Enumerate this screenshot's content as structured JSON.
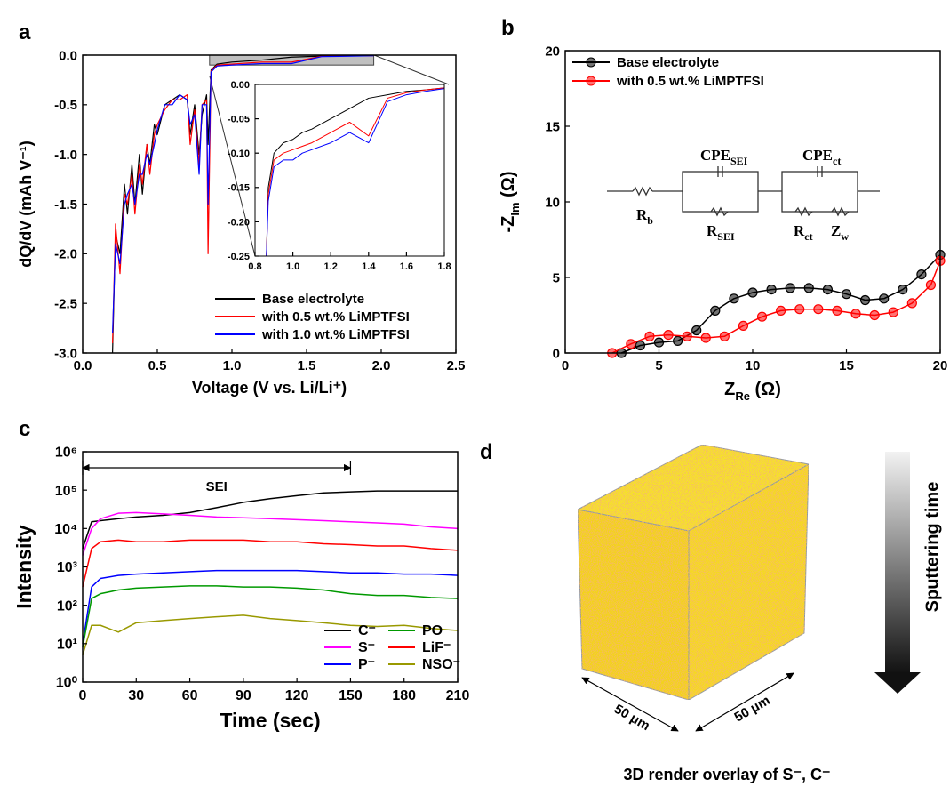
{
  "chart_data": [
    {
      "type": "line",
      "panel": "a",
      "x_label": "Voltage (V vs. Li/Li⁺)",
      "y_label": "dQ/dV (mAh V⁻¹)",
      "xlim": [
        0,
        2.5
      ],
      "ylim": [
        -3,
        0
      ],
      "xticks": [
        {
          "value": 0,
          "label": "0.0"
        },
        0.5,
        {
          "value": 1,
          "label": "1.0"
        },
        1.5,
        {
          "value": 2,
          "label": "2.0"
        },
        2.5
      ],
      "yticks": [
        {
          "value": -3,
          "label": "-3.0"
        },
        -2.5,
        {
          "value": -2,
          "label": "-2.0"
        },
        -1.5,
        {
          "value": -1,
          "label": "-1.0"
        },
        -0.5,
        {
          "value": 0,
          "label": "0.0"
        }
      ],
      "legend": "lower right",
      "highlight": {
        "xlim": [
          0.85,
          1.95
        ],
        "ylim": [
          -0.1,
          0
        ]
      },
      "x": [
        0.2,
        0.22,
        0.25,
        0.28,
        0.3,
        0.33,
        0.35,
        0.38,
        0.4,
        0.43,
        0.45,
        0.48,
        0.5,
        0.55,
        0.6,
        0.65,
        0.7,
        0.72,
        0.75,
        0.78,
        0.8,
        0.83,
        0.84,
        0.86,
        0.9,
        1.0,
        1.2,
        1.4,
        1.6,
        1.8,
        1.95
      ],
      "series": [
        {
          "name": "Base electrolyte",
          "color": "#000000",
          "values": [
            -3.0,
            -1.8,
            -2.0,
            -1.3,
            -1.6,
            -1.1,
            -1.5,
            -1.0,
            -1.4,
            -0.9,
            -1.1,
            -0.7,
            -0.8,
            -0.5,
            -0.45,
            -0.4,
            -0.45,
            -0.8,
            -0.5,
            -1.0,
            -0.6,
            -0.4,
            -0.9,
            -0.15,
            -0.09,
            -0.07,
            -0.05,
            -0.02,
            -0.01,
            -0.007,
            -0.005
          ]
        },
        {
          "name": "with 0.5 wt.% LiMPTFSI",
          "color": "#ff0000",
          "values": [
            -2.9,
            -1.7,
            -2.2,
            -1.4,
            -1.5,
            -1.2,
            -1.6,
            -1.1,
            -1.3,
            -0.9,
            -1.2,
            -0.8,
            -0.7,
            -0.55,
            -0.45,
            -0.45,
            -0.4,
            -0.9,
            -0.55,
            -1.1,
            -0.5,
            -0.45,
            -2.0,
            -0.16,
            -0.1,
            -0.09,
            -0.07,
            -0.07,
            -0.012,
            -0.008,
            -0.005
          ]
        },
        {
          "name": "with 1.0 wt.% LiMPTFSI",
          "color": "#0000ff",
          "values": [
            -2.8,
            -1.9,
            -2.1,
            -1.5,
            -1.4,
            -1.3,
            -1.5,
            -1.2,
            -1.2,
            -1.0,
            -1.1,
            -0.9,
            -0.75,
            -0.5,
            -0.5,
            -0.4,
            -0.45,
            -0.7,
            -0.6,
            -1.2,
            -0.5,
            -0.5,
            -1.5,
            -0.17,
            -0.11,
            -0.1,
            -0.085,
            -0.085,
            -0.015,
            -0.01,
            -0.006
          ]
        }
      ]
    },
    {
      "type": "line",
      "inset": true,
      "xlim": [
        0.8,
        1.8
      ],
      "ylim": [
        -0.25,
        0
      ],
      "xticks": [
        0.8,
        {
          "value": 1,
          "label": "1.0"
        },
        1.2,
        1.4,
        1.6,
        1.8
      ],
      "yticks": [
        {
          "value": -0.25,
          "label": "-0.25"
        },
        {
          "value": -0.2,
          "label": "-0.20"
        },
        {
          "value": -0.15,
          "label": "-0.15"
        },
        {
          "value": -0.1,
          "label": "-0.10"
        },
        {
          "value": -0.05,
          "label": "-0.05"
        },
        {
          "value": 0,
          "label": "0.00"
        }
      ],
      "x": [
        0.86,
        0.87,
        0.9,
        0.95,
        1.0,
        1.05,
        1.1,
        1.2,
        1.3,
        1.4,
        1.5,
        1.6,
        1.7,
        1.8
      ],
      "series": [
        {
          "color": "#000000",
          "values": [
            -0.25,
            -0.15,
            -0.1,
            -0.085,
            -0.08,
            -0.07,
            -0.065,
            -0.05,
            -0.035,
            -0.02,
            -0.015,
            -0.01,
            -0.008,
            -0.005
          ]
        },
        {
          "color": "#ff0000",
          "values": [
            -0.25,
            -0.16,
            -0.11,
            -0.1,
            -0.095,
            -0.09,
            -0.085,
            -0.07,
            -0.055,
            -0.075,
            -0.02,
            -0.012,
            -0.008,
            -0.005
          ]
        },
        {
          "color": "#0000ff",
          "values": [
            -0.25,
            -0.17,
            -0.12,
            -0.11,
            -0.11,
            -0.1,
            -0.095,
            -0.085,
            -0.07,
            -0.085,
            -0.025,
            -0.015,
            -0.01,
            -0.006
          ]
        }
      ]
    },
    {
      "type": "line",
      "panel": "b",
      "markers": true,
      "x_label": {
        "main": "Z",
        "sub": "Re",
        "unit": " (Ω)"
      },
      "y_label": {
        "main": "-Z",
        "sub": "Im",
        "unit": " (Ω)"
      },
      "xlim": [
        0,
        20
      ],
      "ylim": [
        0,
        20
      ],
      "xticks": [
        0,
        5,
        10,
        15,
        20
      ],
      "yticks": [
        0,
        5,
        10,
        15,
        20
      ],
      "legend": "upper left",
      "circuit": [
        {
          "main": "R",
          "sub": "b"
        },
        {
          "main": "CPE",
          "sub": "SEI"
        },
        {
          "main": "R",
          "sub": "SEI"
        },
        {
          "main": "CPE",
          "sub": "ct"
        },
        {
          "main": "R",
          "sub": "ct"
        },
        {
          "main": "Z",
          "sub": "w"
        }
      ],
      "series": [
        {
          "name": "Base electrolyte",
          "color": "#000000",
          "x": [
            3,
            4,
            5,
            6,
            7,
            8,
            9,
            10,
            11,
            12,
            13,
            14,
            15,
            16,
            17,
            18,
            19,
            20
          ],
          "values": [
            0,
            0.5,
            0.7,
            0.8,
            1.5,
            2.8,
            3.6,
            4.0,
            4.2,
            4.3,
            4.3,
            4.2,
            3.9,
            3.5,
            3.6,
            4.2,
            5.2,
            6.5
          ]
        },
        {
          "name": "with 0.5 wt.% LiMPTFSI",
          "color": "#ff0000",
          "x": [
            2.5,
            3.5,
            4.5,
            5.5,
            6.5,
            7.5,
            8.5,
            9.5,
            10.5,
            11.5,
            12.5,
            13.5,
            14.5,
            15.5,
            16.5,
            17.5,
            18.5,
            19.5,
            20
          ],
          "values": [
            0,
            0.6,
            1.1,
            1.2,
            1.1,
            1.0,
            1.1,
            1.8,
            2.4,
            2.8,
            2.9,
            2.9,
            2.8,
            2.6,
            2.5,
            2.7,
            3.3,
            4.5,
            6.1
          ]
        }
      ]
    },
    {
      "type": "line",
      "panel": "c",
      "log_y": true,
      "x_label": "Time (sec)",
      "y_label": "Intensity",
      "xlim": [
        0,
        210
      ],
      "ylim": [
        1,
        1000000
      ],
      "xticks": [
        0,
        30,
        60,
        90,
        120,
        150,
        180,
        210
      ],
      "yticks": [
        {
          "value": 1,
          "label": "10⁰"
        },
        {
          "value": 10,
          "label": "10¹"
        },
        {
          "value": 100,
          "label": "10²"
        },
        {
          "value": 1000,
          "label": "10³"
        },
        {
          "value": 10000,
          "label": "10⁴"
        },
        {
          "value": 100000,
          "label": "10⁵"
        },
        {
          "value": 1000000,
          "label": "10⁶"
        }
      ],
      "annotation": {
        "text": "SEI",
        "xlim": [
          0,
          150
        ]
      },
      "legend": "lower right",
      "legend_columns": 2,
      "x": [
        0,
        5,
        10,
        20,
        30,
        45,
        60,
        75,
        90,
        105,
        120,
        135,
        150,
        165,
        180,
        195,
        210
      ],
      "series": [
        {
          "name": "C⁻",
          "color": "#000000",
          "values": [
            3000,
            15000,
            16000,
            18000,
            20000,
            22000,
            26000,
            35000,
            48000,
            60000,
            72000,
            85000,
            90000,
            95000,
            95000,
            95000,
            95000
          ]
        },
        {
          "name": "S⁻",
          "color": "#ff00ff",
          "values": [
            2000,
            10000,
            18000,
            25000,
            26000,
            24000,
            22000,
            20000,
            19000,
            18000,
            17000,
            16000,
            15000,
            14000,
            13000,
            11000,
            10000
          ]
        },
        {
          "name": "P⁻",
          "color": "#0000ff",
          "values": [
            10,
            300,
            500,
            600,
            650,
            700,
            750,
            800,
            800,
            800,
            800,
            750,
            700,
            700,
            650,
            650,
            600
          ]
        },
        {
          "name": "PO",
          "color": "#009900",
          "values": [
            8,
            150,
            200,
            250,
            280,
            300,
            320,
            320,
            300,
            300,
            280,
            250,
            200,
            180,
            180,
            160,
            150
          ]
        },
        {
          "name": "LiF⁻",
          "color": "#ff0000",
          "values": [
            300,
            3000,
            4500,
            5000,
            4500,
            4500,
            5000,
            5000,
            5000,
            4500,
            4500,
            4000,
            3800,
            3500,
            3500,
            3000,
            2700
          ]
        },
        {
          "name": "NSO⁻",
          "color": "#999900",
          "values": [
            5,
            30,
            30,
            20,
            35,
            40,
            45,
            50,
            55,
            45,
            40,
            35,
            30,
            28,
            30,
            25,
            22
          ]
        }
      ]
    }
  ],
  "panel_d": {
    "panel": "d",
    "gradient_label": "Sputtering time",
    "edge_left": "50 μm",
    "edge_right": "50 μm",
    "caption": "3D render overlay of S⁻, C⁻"
  }
}
